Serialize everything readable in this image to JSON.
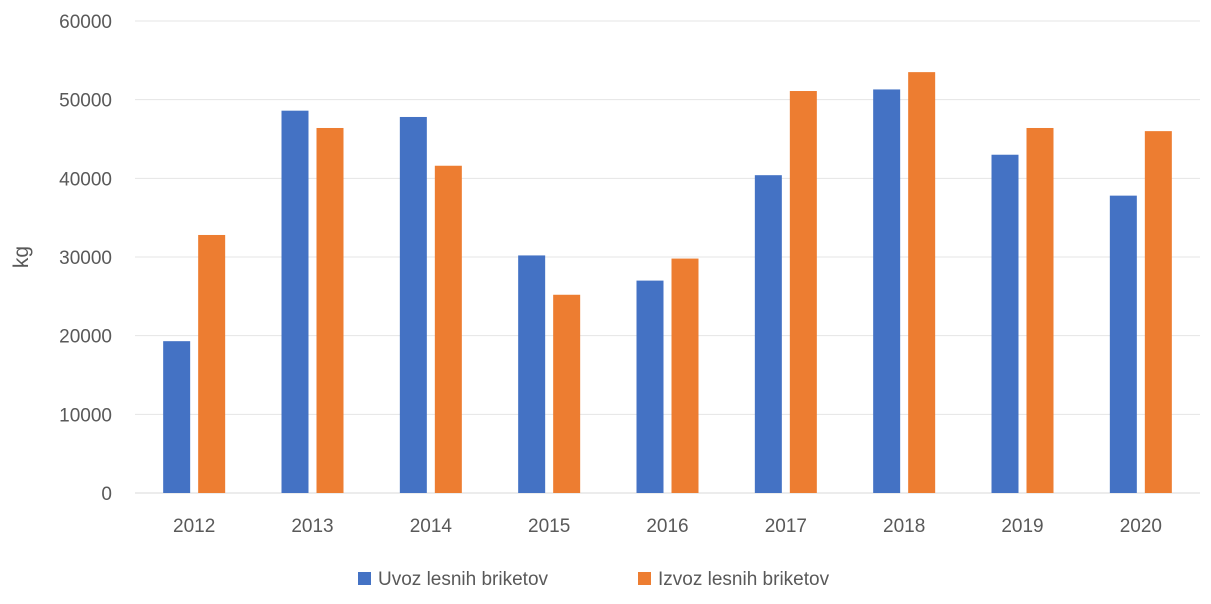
{
  "chart_data": {
    "type": "bar",
    "title": "",
    "xlabel": "",
    "ylabel": "kg",
    "ylim": [
      0,
      60000
    ],
    "yticks": [
      0,
      10000,
      20000,
      30000,
      40000,
      50000,
      60000
    ],
    "categories": [
      "2012",
      "2013",
      "2014",
      "2015",
      "2016",
      "2017",
      "2018",
      "2019",
      "2020"
    ],
    "series": [
      {
        "name": "Uvoz lesnih briketov",
        "color": "#4472C4",
        "values": [
          19300,
          48600,
          47800,
          30200,
          27000,
          40400,
          51300,
          43000,
          37800
        ]
      },
      {
        "name": "Izvoz lesnih briketov",
        "color": "#ED7D31",
        "values": [
          32800,
          46400,
          41600,
          25200,
          29800,
          51100,
          53500,
          46400,
          46000
        ]
      }
    ],
    "grid": true,
    "legend_position": "bottom"
  }
}
